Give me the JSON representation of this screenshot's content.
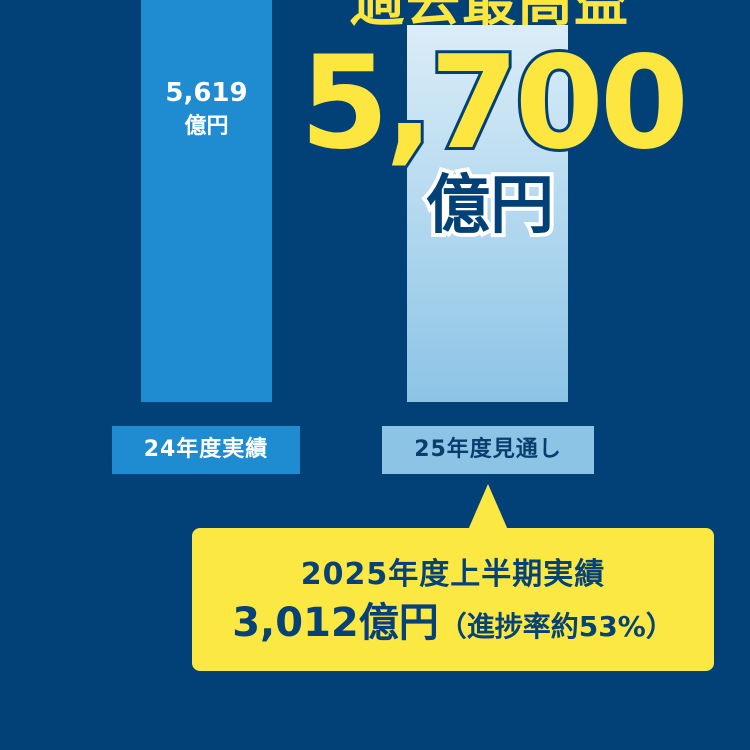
{
  "headline": {
    "title": "過去最高益",
    "value": "5,700",
    "unit": "億円"
  },
  "bars": [
    {
      "category": "24年度実績",
      "value_label": "5,619",
      "unit": "億円",
      "color": "#1f8bd0"
    },
    {
      "category": "25年度見通し",
      "color": "#8cc4e6"
    }
  ],
  "callout": {
    "line1": "2025年度上半期実績",
    "value": "3,012億円",
    "note": "（進捗率約53%）"
  },
  "chart_data": {
    "type": "bar",
    "categories": [
      "24年度実績",
      "25年度見通し"
    ],
    "values": [
      5619,
      5700
    ],
    "unit": "億円"
  }
}
